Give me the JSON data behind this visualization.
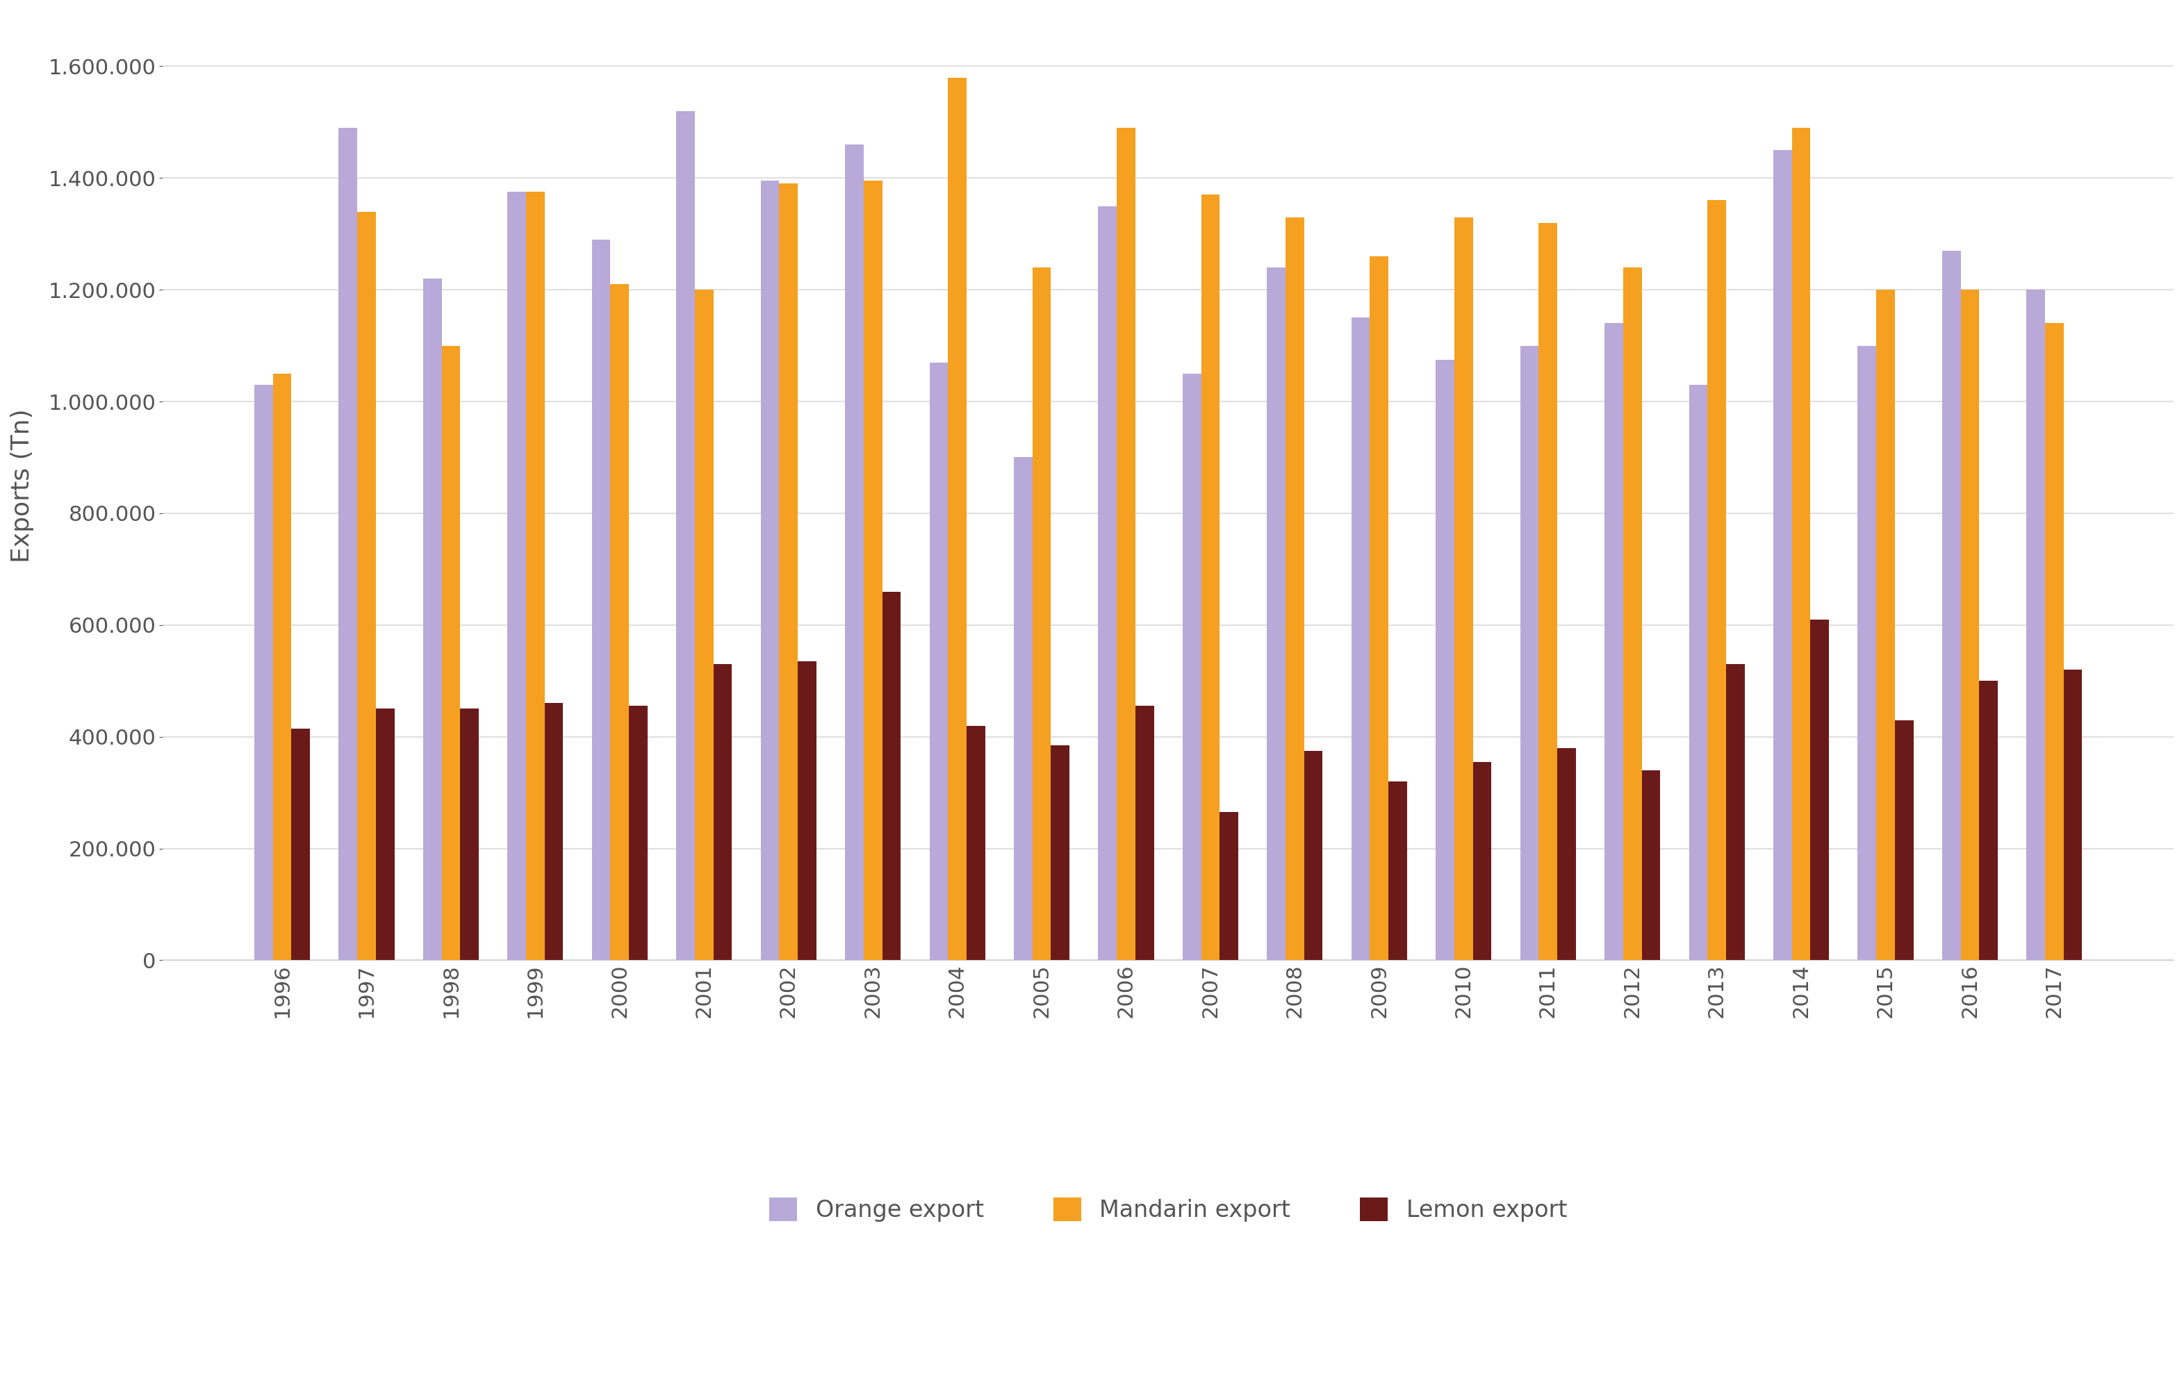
{
  "years": [
    1996,
    1997,
    1998,
    1999,
    2000,
    2001,
    2002,
    2003,
    2004,
    2005,
    2006,
    2007,
    2008,
    2009,
    2010,
    2011,
    2012,
    2013,
    2014,
    2015,
    2016,
    2017
  ],
  "orange": [
    1030000,
    1490000,
    1220000,
    1375000,
    1290000,
    1520000,
    1395000,
    1460000,
    1070000,
    900000,
    1350000,
    1050000,
    1240000,
    1150000,
    1075000,
    1100000,
    1140000,
    1030000,
    1450000,
    1100000,
    1270000,
    1200000
  ],
  "mandarin": [
    1050000,
    1340000,
    1100000,
    1375000,
    1210000,
    1200000,
    1390000,
    1395000,
    1580000,
    1240000,
    1490000,
    1370000,
    1330000,
    1260000,
    1330000,
    1320000,
    1240000,
    1360000,
    1490000,
    1200000,
    1200000,
    1140000
  ],
  "lemon": [
    415000,
    450000,
    450000,
    460000,
    455000,
    530000,
    535000,
    660000,
    420000,
    385000,
    455000,
    265000,
    375000,
    320000,
    355000,
    380000,
    340000,
    530000,
    610000,
    430000,
    500000,
    520000
  ],
  "orange_color": "#b8a9d9",
  "mandarin_color": "#f5a020",
  "lemon_color": "#6b1a1a",
  "ylabel": "Exports (Tn)",
  "ylim": [
    0,
    1700000
  ],
  "yticks": [
    0,
    200000,
    400000,
    600000,
    800000,
    1000000,
    1200000,
    1400000,
    1600000
  ],
  "legend_labels": [
    "Orange export",
    "Mandarin export",
    "Lemon export"
  ],
  "background_color": "#ffffff",
  "grid_color": "#d9d9d9",
  "bar_width": 0.22,
  "tick_fontsize": 22,
  "ylabel_fontsize": 26,
  "legend_fontsize": 24
}
